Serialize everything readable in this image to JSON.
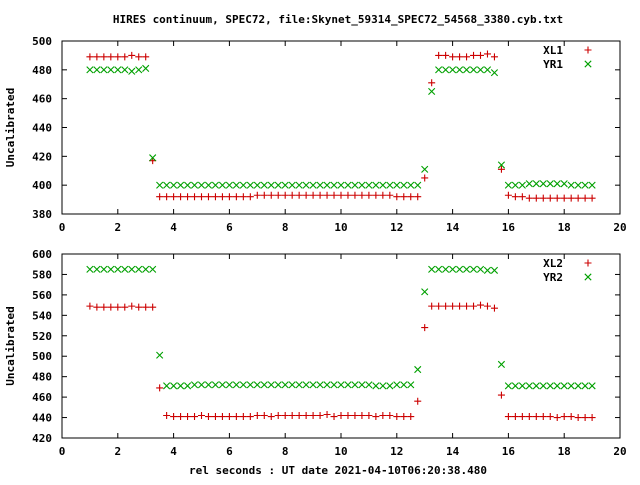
{
  "chart_data": {
    "title": "HIRES continuum, SPEC72, file:Skynet_59314_SPEC72_54568_3380.cyb.txt",
    "xlabel": "rel seconds : UT date 2021-04-10T06:20:38.480",
    "colors": {
      "XL": "#cc0000",
      "YR": "#00a000",
      "axes": "#000000"
    },
    "panels": [
      {
        "type": "scatter",
        "ylabel": "Uncalibrated",
        "xlim": [
          0,
          20
        ],
        "ylim": [
          380,
          500
        ],
        "xticks": [
          0,
          2,
          4,
          6,
          8,
          10,
          12,
          14,
          16,
          18,
          20
        ],
        "yticks": [
          380,
          400,
          420,
          440,
          460,
          480,
          500
        ],
        "grid": false,
        "legend_position": "top-right",
        "series": [
          {
            "name": "XL1",
            "marker": "plus",
            "x": [
              1.0,
              1.25,
              1.5,
              1.75,
              2.0,
              2.25,
              2.5,
              2.75,
              3.0,
              3.25,
              3.5,
              3.75,
              4.0,
              4.25,
              4.5,
              4.75,
              5.0,
              5.25,
              5.5,
              5.75,
              6.0,
              6.25,
              6.5,
              6.75,
              7.0,
              7.25,
              7.5,
              7.75,
              8.0,
              8.25,
              8.5,
              8.75,
              9.0,
              9.25,
              9.5,
              9.75,
              10.0,
              10.25,
              10.5,
              10.75,
              11.0,
              11.25,
              11.5,
              11.75,
              12.0,
              12.25,
              12.5,
              12.75,
              13.0,
              13.25,
              13.5,
              13.75,
              14.0,
              14.25,
              14.5,
              14.75,
              15.0,
              15.25,
              15.5,
              15.75,
              16.0,
              16.25,
              16.5,
              16.75,
              17.0,
              17.25,
              17.5,
              17.75,
              18.0,
              18.25,
              18.5,
              18.75,
              19.0
            ],
            "y": [
              489,
              489,
              489,
              489,
              489,
              489,
              490,
              489,
              489,
              417,
              392,
              392,
              392,
              392,
              392,
              392,
              392,
              392,
              392,
              392,
              392,
              392,
              392,
              392,
              393,
              393,
              393,
              393,
              393,
              393,
              393,
              393,
              393,
              393,
              393,
              393,
              393,
              393,
              393,
              393,
              393,
              393,
              393,
              393,
              392,
              392,
              392,
              392,
              405,
              471,
              490,
              490,
              489,
              489,
              489,
              490,
              490,
              491,
              489,
              411,
              393,
              392,
              392,
              391,
              391,
              391,
              391,
              391,
              391,
              391,
              391,
              391,
              391
            ]
          },
          {
            "name": "YR1",
            "marker": "x",
            "x": [
              1.0,
              1.25,
              1.5,
              1.75,
              2.0,
              2.25,
              2.5,
              2.75,
              3.0,
              3.25,
              3.5,
              3.75,
              4.0,
              4.25,
              4.5,
              4.75,
              5.0,
              5.25,
              5.5,
              5.75,
              6.0,
              6.25,
              6.5,
              6.75,
              7.0,
              7.25,
              7.5,
              7.75,
              8.0,
              8.25,
              8.5,
              8.75,
              9.0,
              9.25,
              9.5,
              9.75,
              10.0,
              10.25,
              10.5,
              10.75,
              11.0,
              11.25,
              11.5,
              11.75,
              12.0,
              12.25,
              12.5,
              12.75,
              13.0,
              13.25,
              13.5,
              13.75,
              14.0,
              14.25,
              14.5,
              14.75,
              15.0,
              15.25,
              15.5,
              15.75,
              16.0,
              16.25,
              16.5,
              16.75,
              17.0,
              17.25,
              17.5,
              17.75,
              18.0,
              18.25,
              18.5,
              18.75,
              19.0
            ],
            "y": [
              480,
              480,
              480,
              480,
              480,
              480,
              479,
              480,
              481,
              419,
              400,
              400,
              400,
              400,
              400,
              400,
              400,
              400,
              400,
              400,
              400,
              400,
              400,
              400,
              400,
              400,
              400,
              400,
              400,
              400,
              400,
              400,
              400,
              400,
              400,
              400,
              400,
              400,
              400,
              400,
              400,
              400,
              400,
              400,
              400,
              400,
              400,
              400,
              411,
              465,
              480,
              480,
              480,
              480,
              480,
              480,
              480,
              480,
              478,
              414,
              400,
              400,
              400,
              401,
              401,
              401,
              401,
              401,
              401,
              400,
              400,
              400,
              400
            ]
          }
        ]
      },
      {
        "type": "scatter",
        "ylabel": "Uncalibrated",
        "xlim": [
          0,
          20
        ],
        "ylim": [
          420,
          600
        ],
        "xticks": [
          0,
          2,
          4,
          6,
          8,
          10,
          12,
          14,
          16,
          18,
          20
        ],
        "yticks": [
          420,
          440,
          460,
          480,
          500,
          520,
          540,
          560,
          580,
          600
        ],
        "grid": false,
        "legend_position": "top-right",
        "series": [
          {
            "name": "XL2",
            "marker": "plus",
            "x": [
              1.0,
              1.25,
              1.5,
              1.75,
              2.0,
              2.25,
              2.5,
              2.75,
              3.0,
              3.25,
              3.5,
              3.75,
              4.0,
              4.25,
              4.5,
              4.75,
              5.0,
              5.25,
              5.5,
              5.75,
              6.0,
              6.25,
              6.5,
              6.75,
              7.0,
              7.25,
              7.5,
              7.75,
              8.0,
              8.25,
              8.5,
              8.75,
              9.0,
              9.25,
              9.5,
              9.75,
              10.0,
              10.25,
              10.5,
              10.75,
              11.0,
              11.25,
              11.5,
              11.75,
              12.0,
              12.25,
              12.5,
              12.75,
              13.0,
              13.25,
              13.5,
              13.75,
              14.0,
              14.25,
              14.5,
              14.75,
              15.0,
              15.25,
              15.5,
              15.75,
              16.0,
              16.25,
              16.5,
              16.75,
              17.0,
              17.25,
              17.5,
              17.75,
              18.0,
              18.25,
              18.5,
              18.75,
              19.0
            ],
            "y": [
              549,
              548,
              548,
              548,
              548,
              548,
              549,
              548,
              548,
              548,
              469,
              442,
              441,
              441,
              441,
              441,
              442,
              441,
              441,
              441,
              441,
              441,
              441,
              441,
              442,
              442,
              441,
              442,
              442,
              442,
              442,
              442,
              442,
              442,
              443,
              441,
              442,
              442,
              442,
              442,
              442,
              441,
              442,
              442,
              441,
              441,
              441,
              456,
              528,
              549,
              549,
              549,
              549,
              549,
              549,
              549,
              550,
              549,
              547,
              462,
              441,
              441,
              441,
              441,
              441,
              441,
              441,
              440,
              441,
              441,
              440,
              440,
              440
            ]
          },
          {
            "name": "YR2",
            "marker": "x",
            "x": [
              1.0,
              1.25,
              1.5,
              1.75,
              2.0,
              2.25,
              2.5,
              2.75,
              3.0,
              3.25,
              3.5,
              3.75,
              4.0,
              4.25,
              4.5,
              4.75,
              5.0,
              5.25,
              5.5,
              5.75,
              6.0,
              6.25,
              6.5,
              6.75,
              7.0,
              7.25,
              7.5,
              7.75,
              8.0,
              8.25,
              8.5,
              8.75,
              9.0,
              9.25,
              9.5,
              9.75,
              10.0,
              10.25,
              10.5,
              10.75,
              11.0,
              11.25,
              11.5,
              11.75,
              12.0,
              12.25,
              12.5,
              12.75,
              13.0,
              13.25,
              13.5,
              13.75,
              14.0,
              14.25,
              14.5,
              14.75,
              15.0,
              15.25,
              15.5,
              15.75,
              16.0,
              16.25,
              16.5,
              16.75,
              17.0,
              17.25,
              17.5,
              17.75,
              18.0,
              18.25,
              18.5,
              18.75,
              19.0
            ],
            "y": [
              585,
              585,
              585,
              585,
              585,
              585,
              585,
              585,
              585,
              585,
              501,
              471,
              471,
              471,
              471,
              472,
              472,
              472,
              472,
              472,
              472,
              472,
              472,
              472,
              472,
              472,
              472,
              472,
              472,
              472,
              472,
              472,
              472,
              472,
              472,
              472,
              472,
              472,
              472,
              472,
              472,
              471,
              471,
              471,
              472,
              472,
              472,
              487,
              563,
              585,
              585,
              585,
              585,
              585,
              585,
              585,
              585,
              584,
              584,
              492,
              471,
              471,
              471,
              471,
              471,
              471,
              471,
              471,
              471,
              471,
              471,
              471,
              471
            ]
          }
        ]
      }
    ]
  }
}
